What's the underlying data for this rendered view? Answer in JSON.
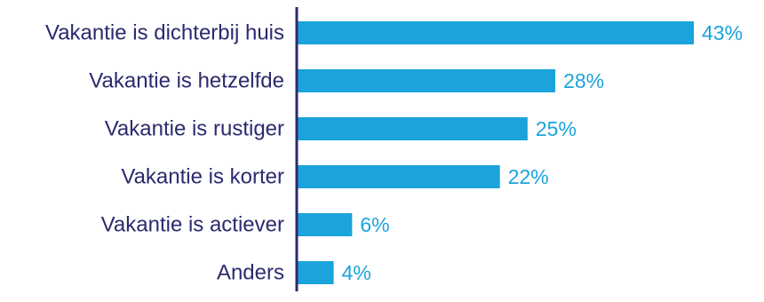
{
  "chart_data": {
    "type": "bar",
    "orientation": "horizontal",
    "categories": [
      "Vakantie is dichterbij huis",
      "Vakantie is hetzelfde",
      "Vakantie is rustiger",
      "Vakantie is korter",
      "Vakantie is actiever",
      "Anders"
    ],
    "values": [
      43,
      28,
      25,
      22,
      6,
      4
    ],
    "value_labels": [
      "43%",
      "28%",
      "25%",
      "22%",
      "6%",
      "4%"
    ],
    "unit": "%",
    "xlim": [
      0,
      43
    ],
    "grid": false,
    "legend": "none"
  },
  "colors": {
    "bar": "#1aa3dc",
    "value_label": "#1aa3dc",
    "category_label": "#2b2a6e",
    "axis_line": "#2b2a6e"
  }
}
